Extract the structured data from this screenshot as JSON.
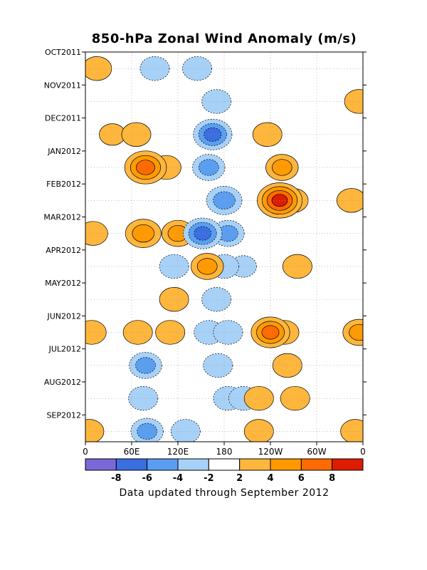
{
  "chart_data": {
    "type": "heatmap",
    "title": "850-hPa Zonal Wind Anomaly (m/s)",
    "footnote": "Data updated through September 2012",
    "xlabel": "",
    "ylabel": "",
    "x_tick_labels": [
      "0",
      "60E",
      "120E",
      "180",
      "120W",
      "60W",
      "0"
    ],
    "x_ticks_deg": [
      0,
      60,
      120,
      180,
      240,
      300,
      360
    ],
    "xlim_deg": [
      0,
      360
    ],
    "y_tick_labels": [
      "OCT2011",
      "NOV2011",
      "DEC2011",
      "JAN2012",
      "FEB2012",
      "MAR2012",
      "APR2012",
      "MAY2012",
      "JUN2012",
      "JUL2012",
      "AUG2012",
      "SEP2012"
    ],
    "ylim": [
      "OCT2011",
      "end of SEP2012"
    ],
    "grid": true,
    "contour_levels": [
      -8,
      -6,
      -4,
      -2,
      2,
      4,
      6,
      8
    ],
    "colorbar": {
      "labels": [
        "-8",
        "-6",
        "-4",
        "-2",
        "2",
        "4",
        "6",
        "8"
      ],
      "colors": [
        "#7b68d8",
        "#3b6ee0",
        "#5a9ef0",
        "#a8d1f8",
        "#ffffff",
        "#ffb63c",
        "#ff9a00",
        "#ff6a00",
        "#dd1c00"
      ]
    },
    "anomaly_features": [
      {
        "lon": 15,
        "time": "OCT2011",
        "value": 3
      },
      {
        "lon": 35,
        "time": "DEC2011",
        "value": 2
      },
      {
        "lon": 66,
        "time": "DEC2011",
        "value": 3
      },
      {
        "lon": 78,
        "time": "JAN2012",
        "value": 7
      },
      {
        "lon": 92,
        "time": "JAN2012",
        "value": 3
      },
      {
        "lon": 105,
        "time": "JAN2012",
        "value": 3
      },
      {
        "lon": 75,
        "time": "MAR2012",
        "value": 5
      },
      {
        "lon": 120,
        "time": "MAR2012",
        "value": 4
      },
      {
        "lon": 158,
        "time": "APR2012",
        "value": 4
      },
      {
        "lon": 90,
        "time": "OCT2011",
        "value": -3
      },
      {
        "lon": 145,
        "time": "OCT2011",
        "value": -3
      },
      {
        "lon": 170,
        "time": "NOV2011",
        "value": -3
      },
      {
        "lon": 165,
        "time": "DEC2011",
        "value": -6
      },
      {
        "lon": 160,
        "time": "JAN2012",
        "value": -4
      },
      {
        "lon": 180,
        "time": "FEB2012",
        "value": -5
      },
      {
        "lon": 152,
        "time": "MAR2012",
        "value": -6
      },
      {
        "lon": 185,
        "time": "MAR2012",
        "value": -4
      },
      {
        "lon": 255,
        "time": "JAN2012",
        "value": 4
      },
      {
        "lon": 252,
        "time": "FEB2012",
        "value": 8
      },
      {
        "lon": 270,
        "time": "FEB2012",
        "value": 3
      },
      {
        "lon": 236,
        "time": "DEC2011",
        "value": 3
      },
      {
        "lon": 275,
        "time": "APR2012",
        "value": 3
      },
      {
        "lon": 355,
        "time": "NOV2011",
        "value": 3
      },
      {
        "lon": 345,
        "time": "FEB2012",
        "value": 3
      },
      {
        "lon": 10,
        "time": "MAR2012",
        "value": 3
      },
      {
        "lon": 8,
        "time": "JUN2012",
        "value": 3
      },
      {
        "lon": 355,
        "time": "JUN2012",
        "value": 4
      },
      {
        "lon": 350,
        "time": "SEP2012",
        "value": 3
      },
      {
        "lon": 5,
        "time": "SEP2012",
        "value": 3
      },
      {
        "lon": 180,
        "time": "APR2012",
        "value": -3
      },
      {
        "lon": 205,
        "time": "APR2012",
        "value": -2
      },
      {
        "lon": 115,
        "time": "APR2012",
        "value": -3
      },
      {
        "lon": 115,
        "time": "MAY2012",
        "value": 3
      },
      {
        "lon": 170,
        "time": "MAY2012",
        "value": -3
      },
      {
        "lon": 160,
        "time": "JUN2012",
        "value": -3
      },
      {
        "lon": 185,
        "time": "JUN2012",
        "value": -3
      },
      {
        "lon": 240,
        "time": "JUN2012",
        "value": 6
      },
      {
        "lon": 258,
        "time": "JUN2012",
        "value": 3
      },
      {
        "lon": 110,
        "time": "JUN2012",
        "value": 3
      },
      {
        "lon": 68,
        "time": "JUN2012",
        "value": 3
      },
      {
        "lon": 78,
        "time": "JUL2012",
        "value": -4
      },
      {
        "lon": 172,
        "time": "JUL2012",
        "value": -3
      },
      {
        "lon": 262,
        "time": "JUL2012",
        "value": 3
      },
      {
        "lon": 75,
        "time": "AUG2012",
        "value": -3
      },
      {
        "lon": 80,
        "time": "SEP2012",
        "value": -4
      },
      {
        "lon": 130,
        "time": "SEP2012",
        "value": -3
      },
      {
        "lon": 185,
        "time": "AUG2012",
        "value": -3
      },
      {
        "lon": 205,
        "time": "AUG2012",
        "value": -3
      },
      {
        "lon": 225,
        "time": "AUG2012",
        "value": 3
      },
      {
        "lon": 272,
        "time": "AUG2012",
        "value": 3
      },
      {
        "lon": 225,
        "time": "SEP2012",
        "value": 3
      }
    ]
  }
}
